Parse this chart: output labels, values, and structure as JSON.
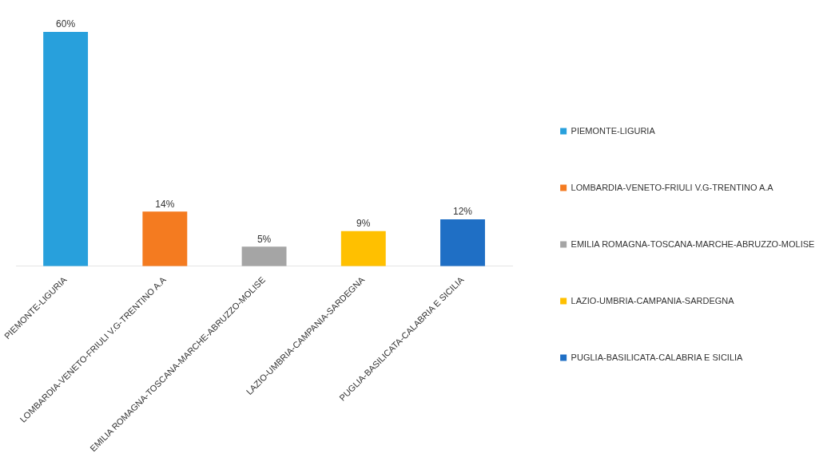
{
  "chart_data": {
    "type": "bar",
    "categories": [
      "PIEMONTE-LIGURIA",
      "LOMBARDIA-VENETO-FRIULI V.G-TRENTINO A.A",
      "EMILIA ROMAGNA-TOSCANA-MARCHE-ABRUZZO-MOLISE",
      "LAZIO-UMBRIA-CAMPANIA-SARDEGNA",
      "PUGLIA-BASILICATA-CALABRIA E SICILIA"
    ],
    "series": [
      {
        "name": "PIEMONTE-LIGURIA",
        "color": "#28a0dc",
        "values": [
          60,
          null,
          null,
          null,
          null
        ],
        "value_labels": [
          "60%",
          null,
          null,
          null,
          null
        ]
      },
      {
        "name": "LOMBARDIA-VENETO-FRIULI V.G-TRENTINO A.A",
        "color": "#f47b20",
        "values": [
          null,
          14,
          null,
          null,
          null
        ],
        "value_labels": [
          null,
          "14%",
          null,
          null,
          null
        ]
      },
      {
        "name": "EMILIA ROMAGNA-TOSCANA-MARCHE-ABRUZZO-MOLISE",
        "color": "#a5a5a5",
        "values": [
          null,
          null,
          5,
          null,
          null
        ],
        "value_labels": [
          null,
          null,
          "5%",
          null,
          null
        ]
      },
      {
        "name": "LAZIO-UMBRIA-CAMPANIA-SARDEGNA",
        "color": "#ffc000",
        "values": [
          null,
          null,
          null,
          9,
          null
        ],
        "value_labels": [
          null,
          null,
          null,
          "9%",
          null
        ]
      },
      {
        "name": "PUGLIA-BASILICATA-CALABRIA E SICILIA",
        "color": "#1f6fc5",
        "values": [
          null,
          null,
          null,
          null,
          12
        ],
        "value_labels": [
          null,
          null,
          null,
          null,
          "12%"
        ]
      }
    ],
    "legend": "right",
    "grid": false
  }
}
